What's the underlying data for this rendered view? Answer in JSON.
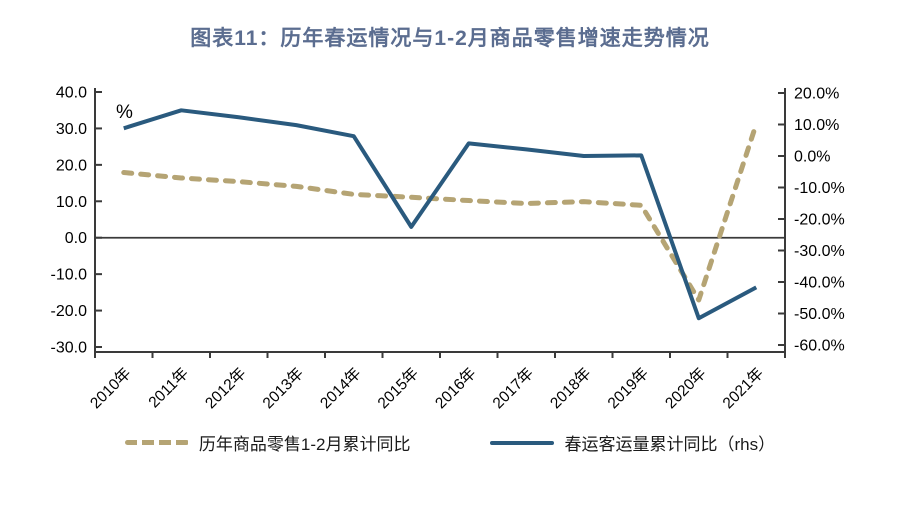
{
  "figure": {
    "title": "图表11：历年春运情况与1-2月商品零售增速走势情况"
  },
  "chart_data": {
    "type": "line",
    "title": "图表11：历年春运情况与1-2月商品零售增速走势情况",
    "categories": [
      "2010年",
      "2011年",
      "2012年",
      "2013年",
      "2014年",
      "2015年",
      "2016年",
      "2017年",
      "2018年",
      "2019年",
      "2020年",
      "2021年"
    ],
    "series": [
      {
        "name": "历年商品零售1-2月累计同比",
        "axis": "left",
        "line_style": "dashed",
        "color": "#b5a474",
        "values": [
          17.9,
          16.4,
          15.4,
          14.1,
          11.9,
          11.1,
          10.2,
          9.4,
          9.9,
          8.9,
          -17.1,
          31.2
        ]
      },
      {
        "name": "春运客运量累计同比（rhs）",
        "axis": "right",
        "line_style": "solid",
        "color": "#2a5a7e",
        "values": [
          8.8,
          14.5,
          12.3,
          9.8,
          6.3,
          -22.5,
          4.0,
          2.1,
          0.0,
          0.2,
          -51.5,
          -41.7
        ]
      }
    ],
    "left_axis": {
      "unit_label": "%",
      "min": -30,
      "max": 40,
      "step": 10,
      "tick_labels": [
        "40.0",
        "30.0",
        "20.0",
        "10.0",
        "0.0",
        "-10.0",
        "-20.0",
        "-30.0"
      ]
    },
    "right_axis": {
      "min": -60,
      "max": 20,
      "step": 10,
      "tick_labels": [
        "20.0%",
        "10.0%",
        "0.0%",
        "-10.0%",
        "-20.0%",
        "-30.0%",
        "-40.0%",
        "-50.0%",
        "-60.0%"
      ]
    },
    "legend_position": "bottom",
    "grid": false
  },
  "colors": {
    "title": "#5b6d90",
    "axis": "#3a3a3a",
    "retail_line": "#b5a474",
    "chunyun_line": "#2a5a7e",
    "background": "#ffffff"
  }
}
